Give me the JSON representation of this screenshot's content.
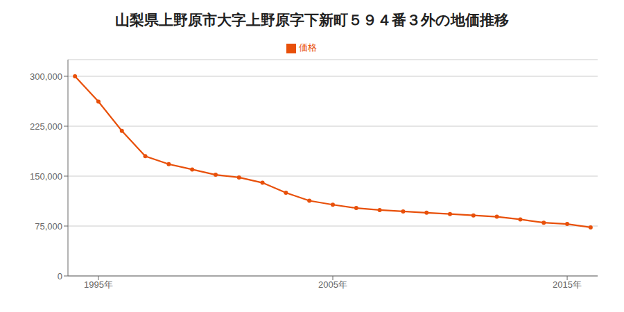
{
  "chart_data": {
    "type": "line",
    "title": "山梨県上野原市大字上野原字下新町５９４番３外の地価推移",
    "x": [
      1994,
      1995,
      1996,
      1997,
      1998,
      1999,
      2000,
      2001,
      2002,
      2003,
      2004,
      2005,
      2006,
      2007,
      2008,
      2009,
      2010,
      2011,
      2012,
      2013,
      2014,
      2015,
      2016
    ],
    "series": [
      {
        "name": "価格",
        "color": "#E8500A",
        "marker": "circle",
        "values": [
          300000,
          262000,
          218000,
          180000,
          168000,
          160000,
          152000,
          148000,
          140000,
          125000,
          113000,
          107000,
          102000,
          99000,
          97000,
          95000,
          93000,
          91000,
          89000,
          85000,
          80000,
          78000,
          73000
        ]
      }
    ],
    "xlim": [
      1993.7,
      2016.3
    ],
    "xticks": [
      {
        "value": 1995,
        "label": "1995年"
      },
      {
        "value": 2005,
        "label": "2005年"
      },
      {
        "value": 2015,
        "label": "2015年"
      }
    ],
    "ylim": [
      0,
      325000
    ],
    "yticks": [
      0,
      {
        "value": 75000,
        "label": "75,000"
      },
      {
        "value": 150000,
        "label": "150,000"
      },
      {
        "value": 225000,
        "label": "225,000"
      },
      {
        "value": 300000,
        "label": "300,000"
      }
    ],
    "grid": true,
    "legend": "top"
  }
}
